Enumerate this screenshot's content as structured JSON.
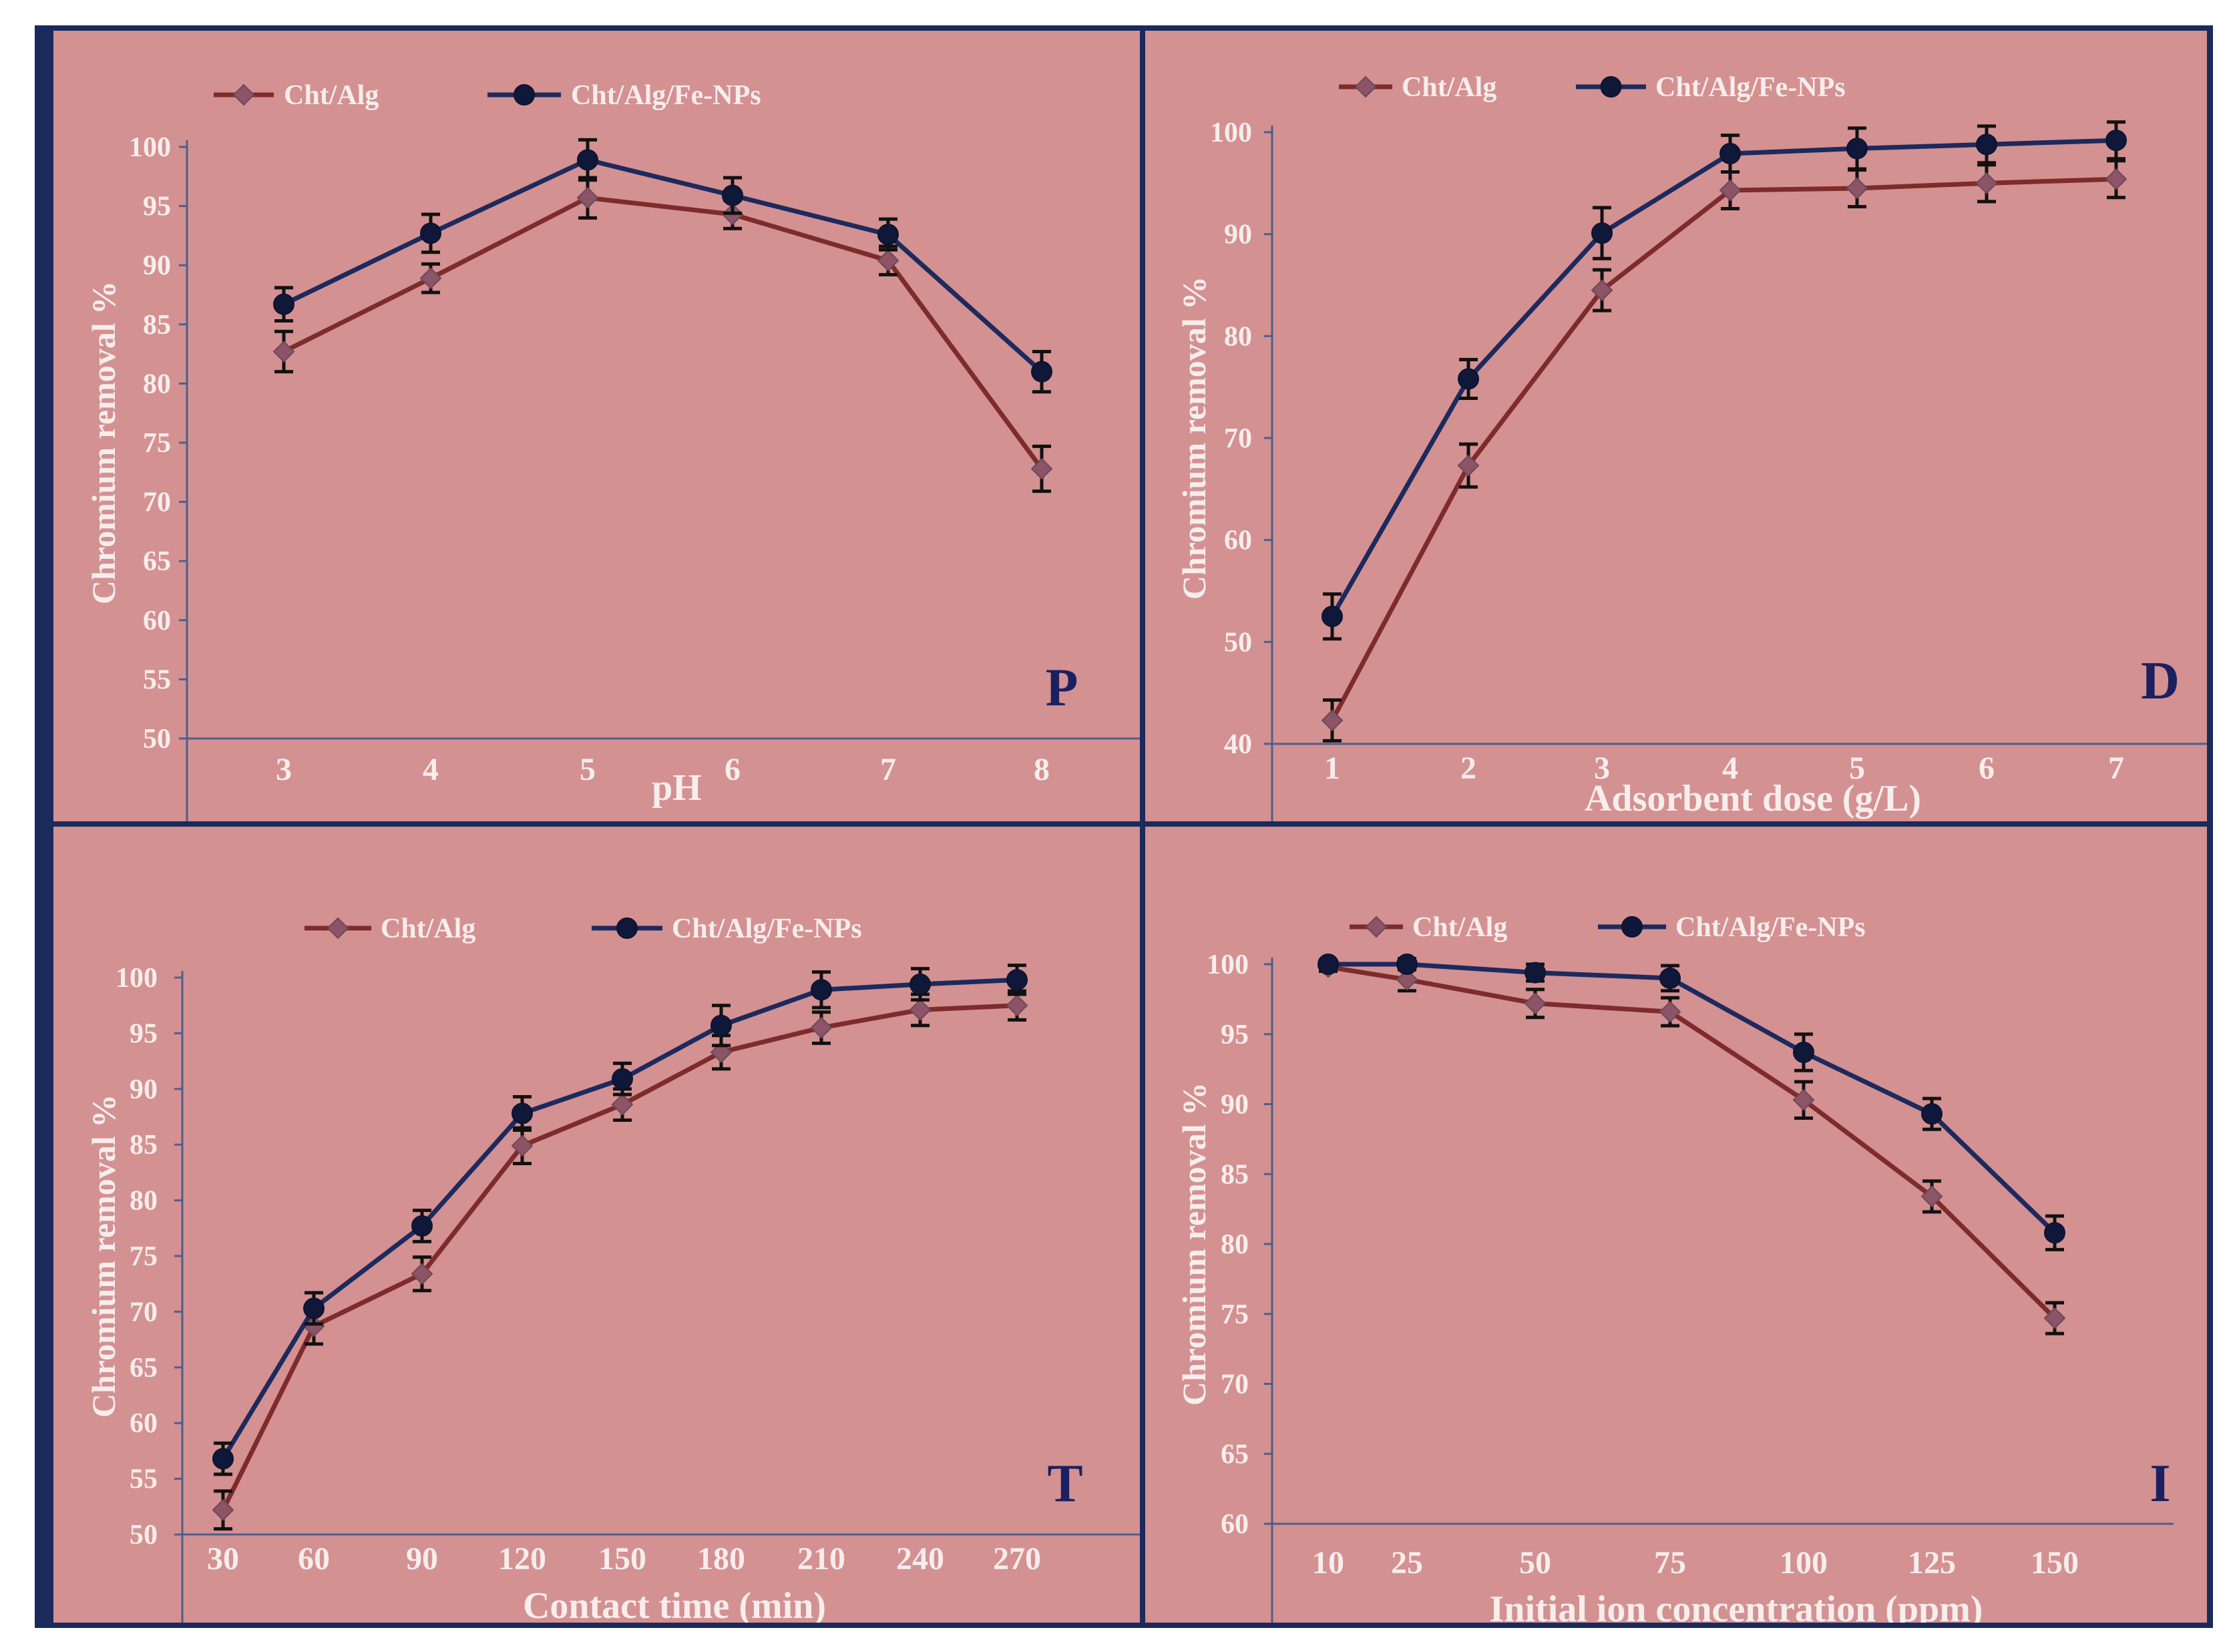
{
  "figure": {
    "colors": {
      "frame": "#1a2a5c",
      "panel_bg": "#d49191",
      "axis_text": "#f7eded",
      "panel_letter": "#1a2060",
      "series_cht_alg": "#7e2b2b",
      "series_cht_alg_fe": "#1c2a5e",
      "error_bar": "#111111",
      "axis_line": "#4d5f8c"
    }
  },
  "chart_data": [
    {
      "id": "P",
      "type": "line",
      "panel_label": "P",
      "title": "",
      "xlabel": "pH",
      "ylabel": "Chromium removal %",
      "categories": [
        "3",
        "4",
        "5",
        "6",
        "7",
        "8"
      ],
      "ylim": [
        50,
        100
      ],
      "yticks": [
        50,
        55,
        60,
        65,
        70,
        75,
        80,
        85,
        90,
        95,
        100
      ],
      "legend": "top",
      "series": [
        {
          "name": "Cht/Alg",
          "marker": "diamond",
          "values": [
            82.7,
            88.9,
            95.7,
            94.3,
            90.4,
            72.8
          ],
          "errors": [
            1.7,
            1.2,
            1.7,
            1.2,
            1.2,
            1.9
          ]
        },
        {
          "name": "Cht/Alg/Fe-NPs",
          "marker": "circle",
          "values": [
            86.7,
            92.7,
            98.9,
            95.9,
            92.6,
            81.0
          ],
          "errors": [
            1.4,
            1.6,
            1.7,
            1.5,
            1.3,
            1.7
          ]
        }
      ]
    },
    {
      "id": "D",
      "type": "line",
      "panel_label": "D",
      "title": "",
      "xlabel": "Adsorbent dose (g/L)",
      "ylabel": "Chromium removal %",
      "categories": [
        "1",
        "2",
        "3",
        "4",
        "5",
        "6",
        "7"
      ],
      "ylim": [
        40,
        100
      ],
      "yticks": [
        40,
        50,
        60,
        70,
        80,
        90,
        100
      ],
      "legend": "top",
      "series": [
        {
          "name": "Cht/Alg",
          "marker": "diamond",
          "values": [
            42.3,
            67.3,
            84.5,
            94.3,
            94.5,
            95.0,
            95.4
          ],
          "errors": [
            2.0,
            2.1,
            2.0,
            1.8,
            1.8,
            1.8,
            1.8
          ]
        },
        {
          "name": "Cht/Alg/Fe-NPs",
          "marker": "circle",
          "values": [
            52.5,
            75.8,
            90.1,
            97.9,
            98.4,
            98.8,
            99.2
          ],
          "errors": [
            2.2,
            1.9,
            2.5,
            1.8,
            2.0,
            1.8,
            1.8
          ]
        }
      ]
    },
    {
      "id": "T",
      "type": "line",
      "panel_label": "T",
      "title": "",
      "xlabel": "Contact time (min)",
      "ylabel": "Chromium removal %",
      "categories": [
        "30",
        "60",
        "90",
        "120",
        "150",
        "180",
        "210",
        "240",
        "270"
      ],
      "ylim": [
        50,
        100
      ],
      "yticks": [
        50,
        55,
        60,
        65,
        70,
        75,
        80,
        85,
        90,
        95,
        100
      ],
      "legend": "top",
      "series": [
        {
          "name": "Cht/Alg",
          "marker": "diamond",
          "values": [
            52.2,
            68.7,
            73.4,
            84.9,
            88.6,
            93.3,
            95.5,
            97.1,
            97.5
          ],
          "errors": [
            1.7,
            1.6,
            1.5,
            1.6,
            1.4,
            1.5,
            1.4,
            1.4,
            1.3
          ]
        },
        {
          "name": "Cht/Alg/Fe-NPs",
          "marker": "circle",
          "values": [
            56.8,
            70.3,
            77.7,
            87.8,
            90.9,
            95.7,
            98.9,
            99.4,
            99.8
          ],
          "errors": [
            1.4,
            1.4,
            1.4,
            1.5,
            1.4,
            1.8,
            1.6,
            1.4,
            1.3
          ]
        }
      ]
    },
    {
      "id": "I",
      "type": "line",
      "panel_label": "I",
      "title": "",
      "xlabel": "Initial ion concentration (ppm)",
      "ylabel": "Chromium removal %",
      "categories": [
        "10",
        "25",
        "50",
        "75",
        "100",
        "125",
        "150"
      ],
      "ylim": [
        60,
        100
      ],
      "yticks": [
        60,
        65,
        70,
        75,
        80,
        85,
        90,
        95,
        100
      ],
      "legend": "top",
      "series": [
        {
          "name": "Cht/Alg",
          "marker": "diamond",
          "values": [
            99.8,
            98.9,
            97.2,
            96.6,
            90.3,
            83.4,
            74.7
          ],
          "errors": [
            0.3,
            0.8,
            1.0,
            1.0,
            1.3,
            1.1,
            1.1
          ]
        },
        {
          "name": "Cht/Alg/Fe-NPs",
          "marker": "circle",
          "values": [
            100.0,
            100.0,
            99.4,
            99.0,
            93.7,
            89.3,
            80.8
          ],
          "errors": [
            0.3,
            0.4,
            0.6,
            0.9,
            1.3,
            1.1,
            1.2
          ]
        }
      ]
    }
  ]
}
